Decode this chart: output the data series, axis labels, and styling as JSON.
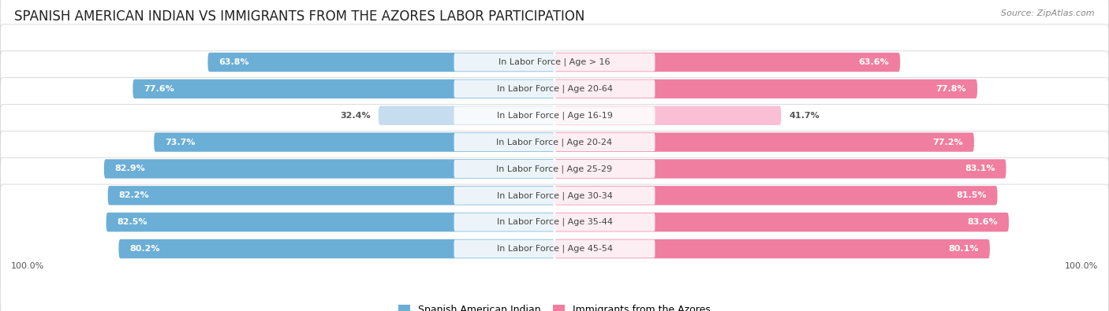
{
  "title": "SPANISH AMERICAN INDIAN VS IMMIGRANTS FROM THE AZORES LABOR PARTICIPATION",
  "source": "Source: ZipAtlas.com",
  "categories": [
    "In Labor Force | Age > 16",
    "In Labor Force | Age 20-64",
    "In Labor Force | Age 16-19",
    "In Labor Force | Age 20-24",
    "In Labor Force | Age 25-29",
    "In Labor Force | Age 30-34",
    "In Labor Force | Age 35-44",
    "In Labor Force | Age 45-54"
  ],
  "left_values": [
    63.8,
    77.6,
    32.4,
    73.7,
    82.9,
    82.2,
    82.5,
    80.2
  ],
  "right_values": [
    63.6,
    77.8,
    41.7,
    77.2,
    83.1,
    81.5,
    83.6,
    80.1
  ],
  "left_color": "#6BAED6",
  "right_color": "#F07EA0",
  "left_color_light": "#C6DCEF",
  "right_color_light": "#FBBFD5",
  "left_label": "Spanish American Indian",
  "right_label": "Immigrants from the Azores",
  "max_val": 100.0,
  "bg_color": "#f5f5f5",
  "row_bg_color": "#e8e8e8",
  "title_fontsize": 12,
  "label_fontsize": 8,
  "value_fontsize": 8,
  "legend_fontsize": 9,
  "source_fontsize": 8,
  "axis_label_fontsize": 8
}
